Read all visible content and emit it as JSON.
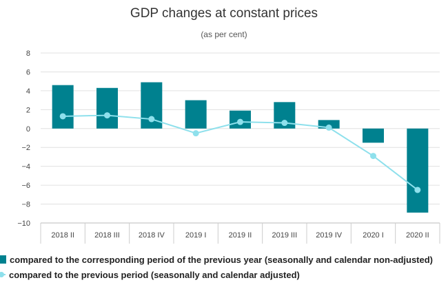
{
  "chart_data": {
    "type": "bar",
    "title": "GDP changes at constant prices",
    "subtitle": "(as per cent)",
    "xlabel": "",
    "ylabel": "",
    "ylim": [
      -10,
      8
    ],
    "yticks": [
      "8",
      "6",
      "4",
      "2",
      "0",
      "−2",
      "−4",
      "−6",
      "−8",
      "−10"
    ],
    "ytick_values": [
      8,
      6,
      4,
      2,
      0,
      -2,
      -4,
      -6,
      -8,
      -10
    ],
    "grid": true,
    "legend_position": "bottom-left",
    "categories": [
      "2018 II",
      "2018 III",
      "2018 IV",
      "2019 I",
      "2019 II",
      "2019 III",
      "2019 IV",
      "2020 I",
      "2020 II"
    ],
    "series": [
      {
        "name": "compared to the corresponding period of the previous year (seasonally and calendar non-adjusted)",
        "type": "bar",
        "color": "#00818f",
        "values": [
          4.6,
          4.3,
          4.9,
          3.0,
          1.9,
          2.8,
          0.9,
          -1.5,
          -8.9
        ]
      },
      {
        "name": "compared to the previous period (seasonally and calendar adjusted)",
        "type": "line",
        "color": "#8ee0ec",
        "values": [
          1.3,
          1.4,
          1.0,
          -0.5,
          0.7,
          0.6,
          0.1,
          -2.9,
          -6.5
        ]
      }
    ]
  }
}
